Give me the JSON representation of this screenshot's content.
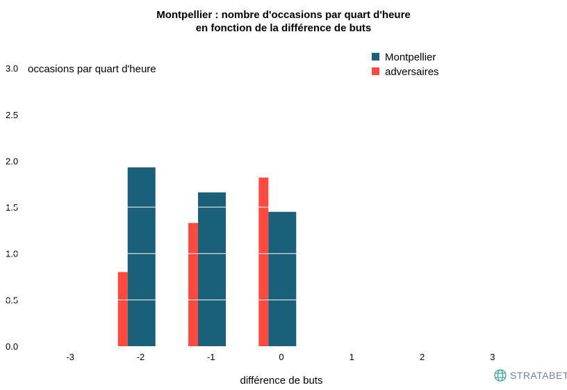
{
  "chart_data": {
    "type": "bar",
    "title_lines": [
      "Montpellier : nombre d'occasions par quart d'heure",
      "en fonction de la différence de buts"
    ],
    "xlabel": "différence de buts",
    "ylabel": "occasions par quart d'heure",
    "categories": [
      "-3",
      "-2",
      "-1",
      "0",
      "1",
      "2",
      "3"
    ],
    "x_values": [
      -3,
      -2,
      -1,
      0,
      1,
      2,
      3
    ],
    "yticks": [
      "0.0",
      "0.5",
      "1.0",
      "1.5",
      "2.0",
      "2.5",
      "3.0"
    ],
    "ylim": [
      0,
      3.0
    ],
    "xlim": [
      -3.5,
      3.5
    ],
    "grid": "white lines over bars",
    "legend_position": "top-right",
    "series": [
      {
        "name": "adversaires",
        "color": "#ff4a40",
        "points": [
          {
            "x": -1,
            "y": 0.8
          },
          {
            "x": 0,
            "y": 1.33
          },
          {
            "x": 1,
            "y": 1.82
          }
        ]
      },
      {
        "name": "Montpellier",
        "color": "#1b6079",
        "points": [
          {
            "x": -1,
            "y": 1.93
          },
          {
            "x": 0,
            "y": 1.66
          },
          {
            "x": 1,
            "y": 1.45
          }
        ]
      }
    ],
    "legend": [
      "Montpellier",
      "adversaires"
    ]
  },
  "brand": {
    "name": "STRATABET",
    "color": "#3aa59a"
  }
}
